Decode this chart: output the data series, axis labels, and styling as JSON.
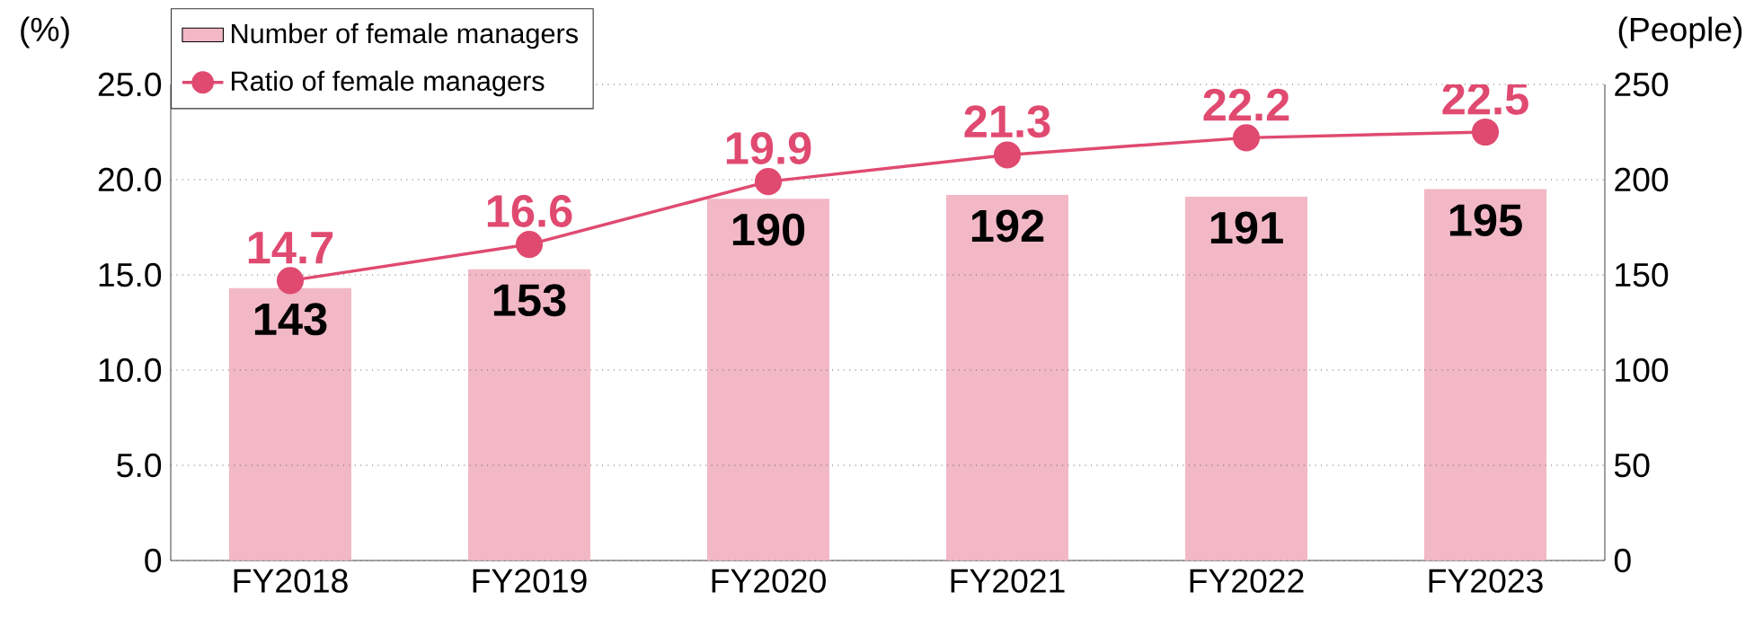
{
  "chart_data": {
    "type": "bar",
    "ylabel": "(%)",
    "y2label": "(People)",
    "categories": [
      "FY2018",
      "FY2019",
      "FY2020",
      "FY2021",
      "FY2022",
      "FY2023"
    ],
    "series": [
      {
        "name": "Number of female managers",
        "axis": "y2",
        "color": "#f2b8c6",
        "values": [
          143,
          153,
          190,
          192,
          191,
          195
        ]
      },
      {
        "name": "Ratio of female managers",
        "type": "line",
        "axis": "y",
        "color": "#e04a70",
        "values": [
          14.7,
          16.6,
          19.9,
          21.3,
          22.2,
          22.5
        ],
        "marker": "circle",
        "line_style": "solid"
      }
    ],
    "ylim": [
      0,
      25
    ],
    "yticks": [
      0,
      {
        "value": 5,
        "label": "5.0"
      },
      {
        "value": 10,
        "label": "10.0"
      },
      {
        "value": 15,
        "label": "15.0"
      },
      {
        "value": 20,
        "label": "20.0"
      },
      {
        "value": 25,
        "label": "25.0"
      }
    ],
    "y2lim": [
      0,
      250
    ],
    "y2ticks": [
      0,
      50,
      100,
      150,
      200,
      250
    ],
    "grid": "y",
    "legend": "top left",
    "data_labels": true
  }
}
